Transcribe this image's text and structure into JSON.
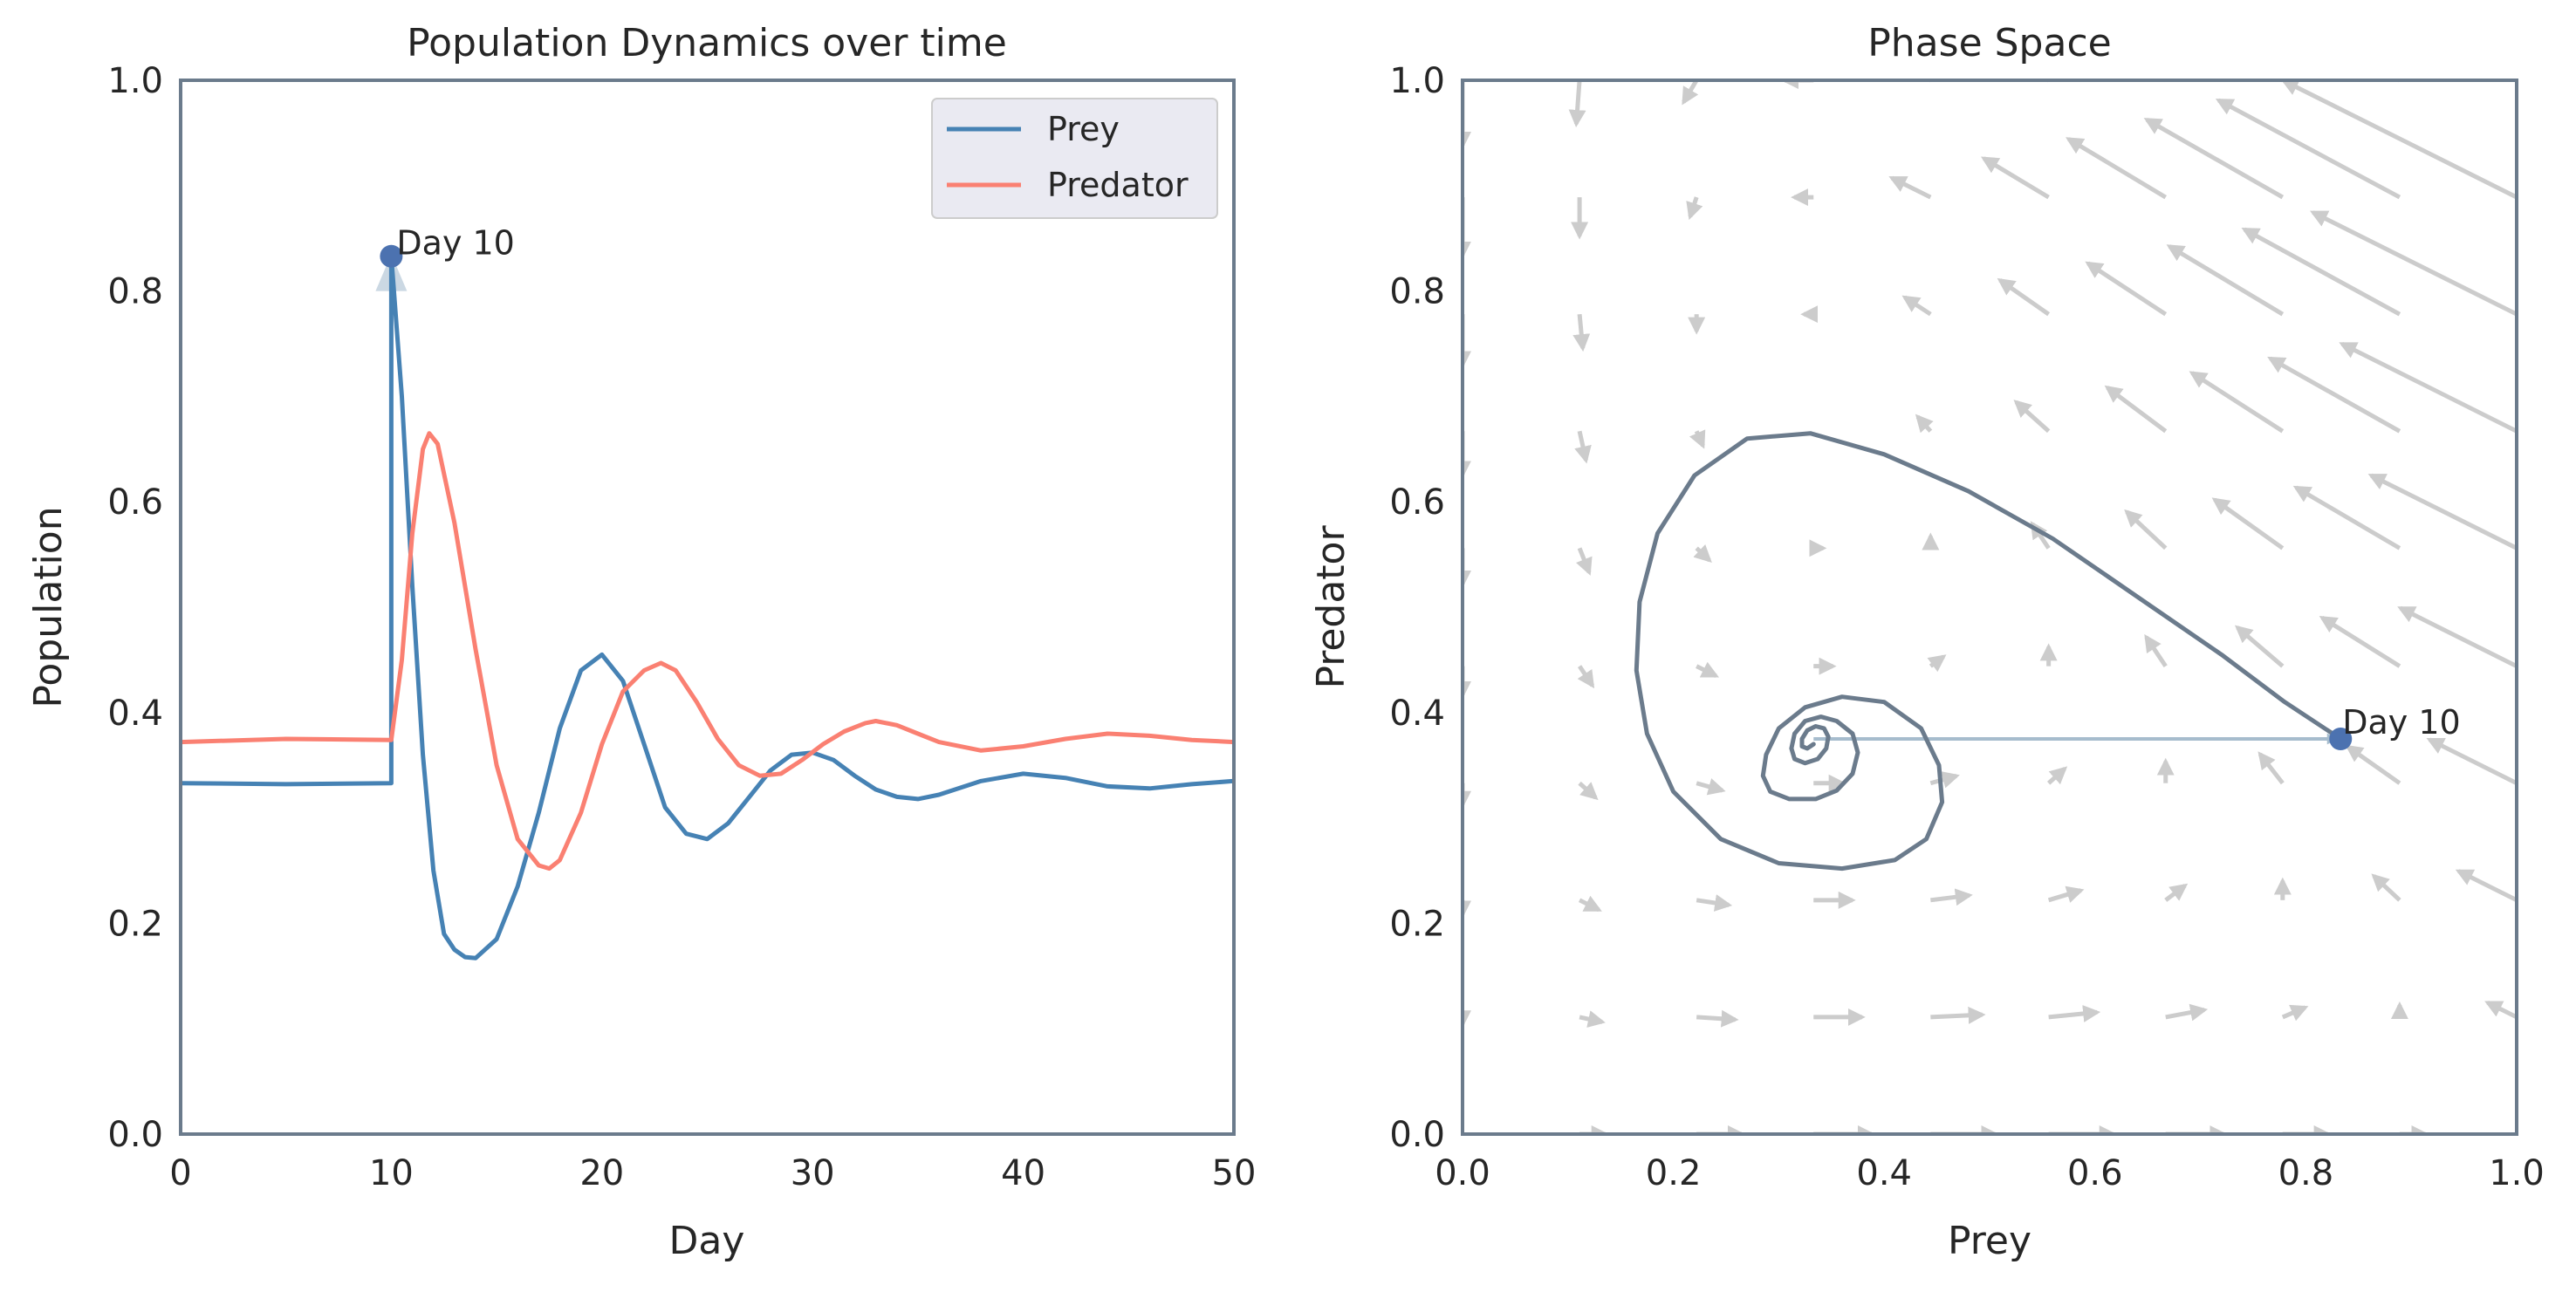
{
  "chart_data": [
    {
      "type": "line",
      "title": "Population Dynamics over time",
      "xlabel": "Day",
      "ylabel": "Population",
      "xlim": [
        0,
        50
      ],
      "ylim": [
        0,
        1
      ],
      "xticks": [
        "0",
        "10",
        "20",
        "30",
        "40",
        "50"
      ],
      "yticks": [
        "0.0",
        "0.2",
        "0.4",
        "0.6",
        "0.8",
        "1.0"
      ],
      "grid": false,
      "legend": "top-right",
      "series": [
        {
          "name": "Prey",
          "color": "#4682b4",
          "x": [
            0,
            5,
            10,
            10,
            10.5,
            11,
            11.5,
            12,
            12.5,
            13,
            13.5,
            14,
            15,
            16,
            17,
            18,
            19,
            20,
            21,
            22,
            23,
            24,
            25,
            26,
            27,
            28,
            29,
            30,
            31,
            32,
            33,
            34,
            35,
            36,
            38,
            40,
            42,
            44,
            46,
            48,
            50
          ],
          "y": [
            0.333,
            0.332,
            0.333,
            0.833,
            0.7,
            0.52,
            0.36,
            0.25,
            0.19,
            0.175,
            0.168,
            0.167,
            0.185,
            0.235,
            0.305,
            0.385,
            0.44,
            0.455,
            0.43,
            0.37,
            0.31,
            0.285,
            0.28,
            0.295,
            0.32,
            0.345,
            0.36,
            0.362,
            0.355,
            0.34,
            0.327,
            0.32,
            0.318,
            0.322,
            0.335,
            0.342,
            0.338,
            0.33,
            0.328,
            0.332,
            0.335
          ]
        },
        {
          "name": "Predator",
          "color": "#fa8072",
          "x": [
            0,
            5,
            10,
            10.5,
            11,
            11.5,
            11.8,
            12.2,
            13,
            14,
            15,
            16,
            17,
            17.5,
            18,
            19,
            20,
            21,
            22,
            22.8,
            23.5,
            24.5,
            25.5,
            26.5,
            27.5,
            28.5,
            29.5,
            30.5,
            31.5,
            32.5,
            33,
            34,
            35,
            36,
            38,
            40,
            42,
            44,
            46,
            48,
            50
          ],
          "y": [
            0.372,
            0.375,
            0.374,
            0.45,
            0.57,
            0.65,
            0.665,
            0.655,
            0.58,
            0.46,
            0.35,
            0.28,
            0.255,
            0.252,
            0.26,
            0.305,
            0.37,
            0.42,
            0.44,
            0.447,
            0.44,
            0.41,
            0.375,
            0.35,
            0.34,
            0.342,
            0.355,
            0.37,
            0.382,
            0.39,
            0.392,
            0.388,
            0.38,
            0.372,
            0.364,
            0.368,
            0.375,
            0.38,
            0.378,
            0.374,
            0.372
          ]
        }
      ],
      "annotations": [
        {
          "text": "Day 10",
          "x": 10,
          "y": 0.833
        }
      ]
    },
    {
      "type": "line",
      "title": "Phase Space",
      "xlabel": "Prey",
      "ylabel": "Predator",
      "xlim": [
        0,
        1
      ],
      "ylim": [
        0,
        1
      ],
      "xticks": [
        "0.0",
        "0.2",
        "0.4",
        "0.6",
        "0.8",
        "1.0"
      ],
      "yticks": [
        "0.0",
        "0.2",
        "0.4",
        "0.6",
        "0.8",
        "1.0"
      ],
      "grid": false,
      "trajectory_color": "#6b7b8c",
      "vector_field_color": "#cccccc",
      "perturbation_arrow": {
        "from": [
          0.333,
          0.375
        ],
        "to": [
          0.833,
          0.375
        ],
        "color": "#a6bccd"
      },
      "series": [
        {
          "name": "",
          "x": [
            0.833,
            0.78,
            0.72,
            0.64,
            0.56,
            0.48,
            0.4,
            0.33,
            0.27,
            0.22,
            0.185,
            0.168,
            0.165,
            0.175,
            0.2,
            0.245,
            0.3,
            0.36,
            0.41,
            0.44,
            0.455,
            0.452,
            0.435,
            0.4,
            0.36,
            0.325,
            0.3,
            0.288,
            0.285,
            0.292,
            0.31,
            0.335,
            0.355,
            0.37,
            0.375,
            0.37,
            0.355,
            0.34,
            0.325,
            0.315,
            0.312,
            0.315,
            0.325,
            0.337,
            0.345,
            0.347,
            0.343,
            0.335,
            0.327,
            0.322,
            0.322,
            0.327,
            0.333
          ],
          "y": [
            0.375,
            0.41,
            0.455,
            0.51,
            0.565,
            0.61,
            0.645,
            0.665,
            0.66,
            0.625,
            0.57,
            0.505,
            0.44,
            0.38,
            0.325,
            0.28,
            0.257,
            0.252,
            0.26,
            0.28,
            0.315,
            0.35,
            0.385,
            0.41,
            0.415,
            0.405,
            0.385,
            0.36,
            0.34,
            0.325,
            0.318,
            0.318,
            0.326,
            0.342,
            0.362,
            0.38,
            0.392,
            0.396,
            0.392,
            0.38,
            0.366,
            0.356,
            0.352,
            0.356,
            0.366,
            0.377,
            0.385,
            0.387,
            0.383,
            0.375,
            0.368,
            0.366,
            0.37
          ]
        }
      ],
      "annotations": [
        {
          "text": "Day 10",
          "x": 0.833,
          "y": 0.375
        }
      ]
    }
  ]
}
